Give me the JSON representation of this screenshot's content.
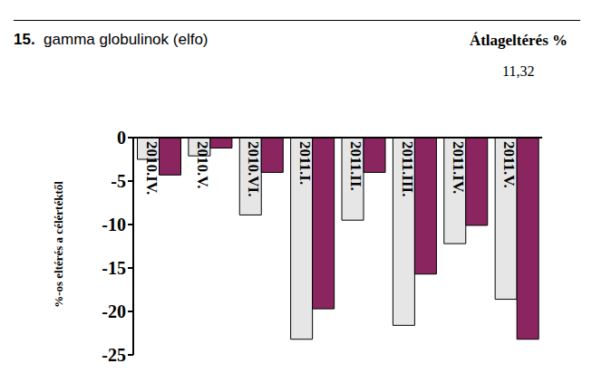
{
  "chart_data": {
    "type": "bar",
    "title": "15. gamma globulinok (elfo)",
    "annotations": [
      "Átlageltérés %",
      "11,32"
    ],
    "y_label": "%-os eltérés a célértéktől",
    "categories": [
      "2010.IV.",
      "2010.V.",
      "2010.VI.",
      "2011.I.",
      "2011.II.",
      "2011.III.",
      "2011.IV.",
      "2011.V."
    ],
    "series": [
      {
        "color": "#e6e6e6",
        "values": [
          -2.5,
          -2.1,
          -8.9,
          -23.2,
          -9.5,
          -21.6,
          -12.2,
          -18.6
        ]
      },
      {
        "color": "#8b2560",
        "values": [
          -4.3,
          -1.2,
          -4.0,
          -19.7,
          -4.0,
          -15.7,
          -10.1,
          -23.2
        ]
      }
    ],
    "ylim": [
      -25,
      0
    ],
    "yticks": [
      0,
      -5,
      -10,
      -15,
      -20,
      -25
    ],
    "grid": false,
    "legend": false,
    "data_labels": false
  }
}
